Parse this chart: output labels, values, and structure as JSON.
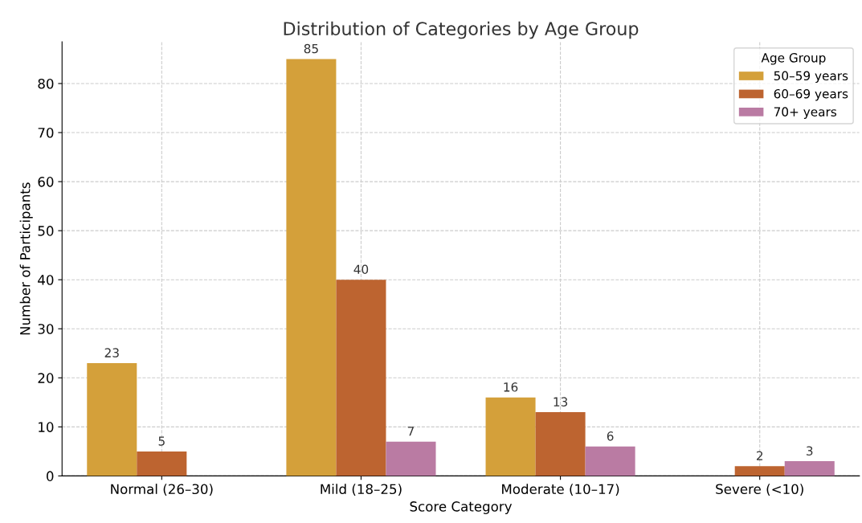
{
  "chart_data": {
    "type": "bar",
    "title": "Distribution of Categories by Age Group",
    "xlabel": "Score Category",
    "ylabel": "Number of Participants",
    "categories": [
      "Normal (26–30)",
      "Mild (18–25)",
      "Moderate (10–17)",
      "Severe (<10)"
    ],
    "series": [
      {
        "name": "50–59 years",
        "color": "#d4a03a",
        "values": [
          23,
          85,
          16,
          null
        ]
      },
      {
        "name": "60–69 years",
        "color": "#bd6430",
        "values": [
          5,
          40,
          13,
          2
        ]
      },
      {
        "name": "70+ years",
        "color": "#ba7ba3",
        "values": [
          null,
          7,
          6,
          3
        ]
      }
    ],
    "ylim": [
      0,
      88.5
    ],
    "yticks": [
      0,
      10,
      20,
      30,
      40,
      50,
      60,
      70,
      80
    ],
    "grid": true,
    "legend": "top right",
    "legend_title": "Age Group",
    "data_labels": true
  }
}
